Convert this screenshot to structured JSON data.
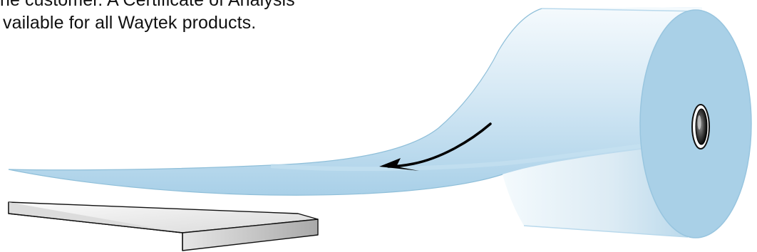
{
  "caption": {
    "line1": "he customer.  A Certificate of Analysis",
    "line2": "vailable for all Waytek products."
  },
  "colors": {
    "roll_blue": "#b2d8ec",
    "roll_blue_light": "#eef7fc",
    "end_face": "#a8d0e6",
    "outline": "#111111",
    "arrow": "#000000",
    "block_top": "#f2f2f2",
    "block_side": "#bdbdbd"
  },
  "icons": {
    "roll": "film-roll-icon",
    "arrow": "curved-arrow-icon",
    "block": "slab-block-icon"
  }
}
